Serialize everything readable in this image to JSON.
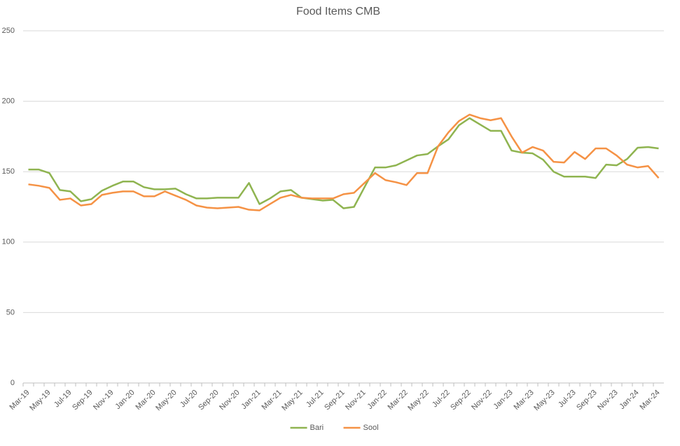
{
  "chart_data": {
    "type": "line",
    "title": "Food Items CMB",
    "categories": [
      "Mar-19",
      null,
      "May-19",
      null,
      "Jul-19",
      null,
      "Sep-19",
      null,
      "Nov-19",
      null,
      "Jan-20",
      null,
      "Mar-20",
      null,
      "May-20",
      null,
      "Jul-20",
      null,
      "Sep-20",
      null,
      "Nov-20",
      null,
      "Jan-21",
      null,
      "Mar-21",
      null,
      "May-21",
      null,
      "Jul-21",
      null,
      "Sep-21",
      null,
      "Nov-21",
      null,
      "Jan-22",
      null,
      "Mar-22",
      null,
      "May-22",
      null,
      "Jul-22",
      null,
      "Sep-22",
      null,
      "Nov-22",
      null,
      "Jan-23",
      null,
      "Mar-23",
      null,
      "May-23",
      null,
      "Jul-23",
      null,
      "Sep-23",
      null,
      "Nov-23",
      null,
      "Jan-24",
      null,
      "Mar-24"
    ],
    "series": [
      {
        "name": "Bari",
        "color": "#8fb450",
        "values": [
          151.5,
          151.5,
          149,
          137,
          136,
          129,
          130.5,
          136.5,
          140,
          143,
          143,
          139,
          137.5,
          137.5,
          138,
          134,
          131,
          131,
          131.5,
          131.5,
          131.5,
          142,
          127,
          131,
          136,
          137,
          131.5,
          130.5,
          129.5,
          130,
          124,
          125,
          139,
          153,
          153,
          154.5,
          158,
          161.5,
          162.5,
          168,
          173,
          183,
          188,
          183.5,
          179,
          179,
          165,
          163.5,
          163,
          158.5,
          150,
          146.5,
          146.5,
          146.5,
          145.5,
          155,
          154.5,
          159,
          167,
          167.5,
          166.5
        ]
      },
      {
        "name": "Sool",
        "color": "#f59245",
        "values": [
          141,
          140,
          138.5,
          130,
          131,
          126,
          127,
          133.5,
          135,
          136,
          136,
          132.5,
          132.5,
          136,
          133,
          130,
          126,
          124.5,
          124,
          124.5,
          125,
          123,
          122.5,
          127,
          131.5,
          133.5,
          131.5,
          131,
          131,
          131,
          134,
          135,
          142,
          149,
          144,
          142.5,
          140.5,
          149,
          149,
          168,
          178,
          186,
          190.5,
          188,
          186.5,
          188,
          175,
          163.5,
          167.5,
          165,
          157,
          156.5,
          164,
          159,
          166.5,
          166.5,
          161.5,
          155,
          153,
          154,
          145.5
        ]
      }
    ],
    "ylim": [
      0,
      250
    ],
    "yticks": [
      0,
      50,
      100,
      150,
      200,
      250
    ],
    "grid": true,
    "legend": "bottom"
  }
}
